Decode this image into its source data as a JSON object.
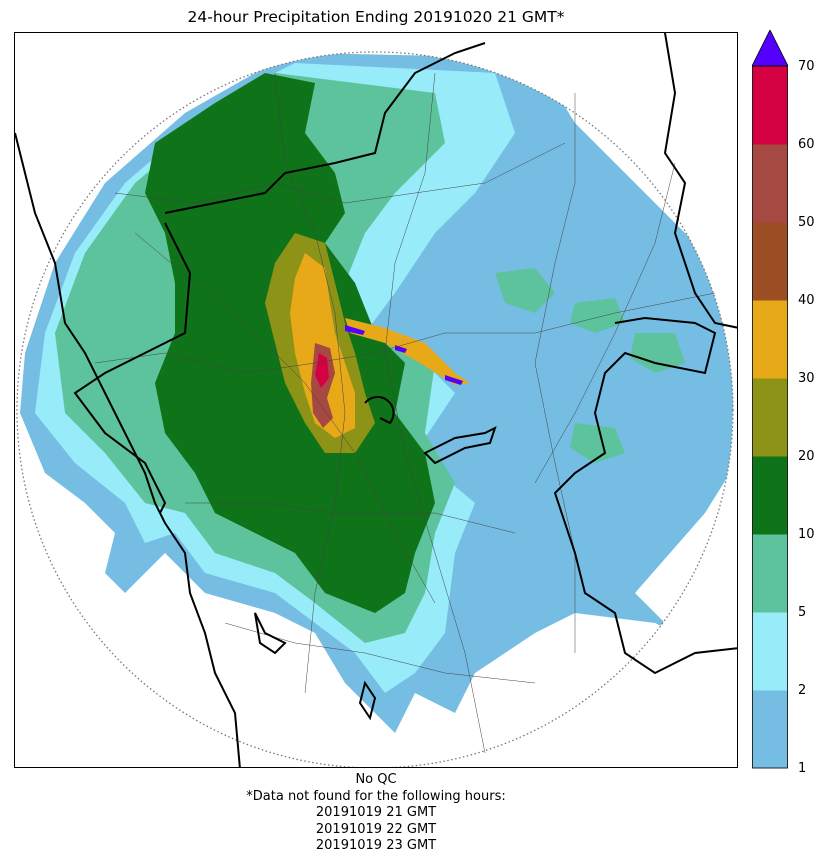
{
  "title": "24-hour Precipitation Ending 20191020 21 GMT*",
  "colorbar": {
    "ticks": [
      "1",
      "2",
      "5",
      "10",
      "20",
      "30",
      "40",
      "50",
      "60",
      "70"
    ],
    "colors": [
      "#76bde4",
      "#98ecfa",
      "#5dc39c",
      "#0f7319",
      "#8c9317",
      "#e8a918",
      "#9c4f25",
      "#a64942",
      "#d40042"
    ],
    "extend_color": "#5400ff"
  },
  "footer": {
    "qc": "No QC",
    "note": "*Data not found for the following hours:",
    "missing_hours": [
      "20191019 21 GMT",
      "20191019 22 GMT",
      "20191019 23 GMT"
    ]
  }
}
